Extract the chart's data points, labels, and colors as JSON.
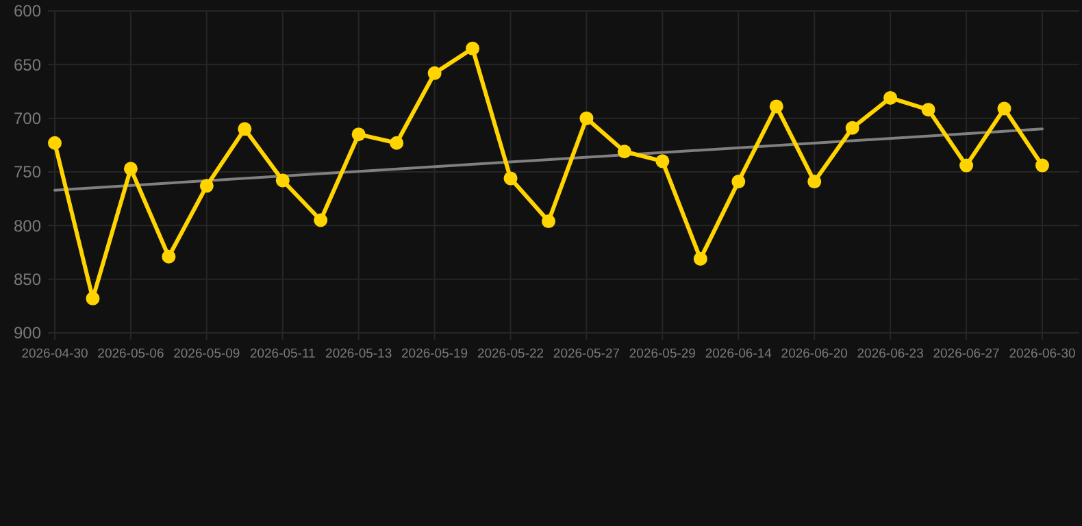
{
  "chart_data": {
    "type": "line",
    "categories": [
      "2026-04-30",
      null,
      "2026-05-06",
      null,
      "2026-05-09",
      null,
      "2026-05-11",
      null,
      "2026-05-13",
      null,
      "2026-05-19",
      null,
      "2026-05-22",
      null,
      "2026-05-27",
      null,
      "2026-05-29",
      null,
      "2026-06-14",
      null,
      "2026-06-20",
      null,
      "2026-06-23",
      null,
      "2026-06-27",
      null,
      "2026-06-30"
    ],
    "series": [
      {
        "color": "#ffd400",
        "values": [
          723,
          868,
          747,
          829,
          763,
          710,
          758,
          795,
          715,
          723,
          658,
          635,
          756,
          796,
          700,
          731,
          740,
          831,
          759,
          689,
          759,
          709,
          681,
          692,
          744,
          691,
          744
        ]
      },
      {
        "type": "line",
        "color": "#808080",
        "values": [
          767,
          null,
          null,
          null,
          null,
          null,
          null,
          null,
          null,
          null,
          null,
          null,
          null,
          null,
          null,
          null,
          null,
          null,
          null,
          null,
          null,
          null,
          null,
          null,
          null,
          null,
          710
        ],
        "marker": "none"
      }
    ],
    "ylim": [
      900,
      600
    ],
    "yticks": [
      600,
      650,
      700,
      750,
      800,
      850,
      900
    ],
    "grid": true,
    "marker": "circle",
    "line_style": "solid"
  }
}
